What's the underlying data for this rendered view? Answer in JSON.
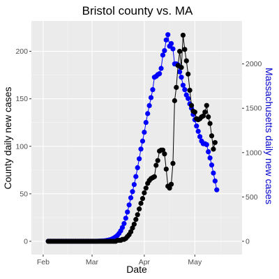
{
  "chart_data": {
    "type": "line",
    "title": "Bristol county vs. MA",
    "xlabel": "Date",
    "ylabel_left": "County daily new cases",
    "ylabel_right": "Massachusetts daily new cases",
    "x_ticks": [
      "Feb",
      "Mar",
      "Apr",
      "May"
    ],
    "y_left_ticks": [
      0,
      50,
      100,
      150,
      200
    ],
    "y_right_ticks": [
      0,
      500,
      1000,
      1500,
      2000
    ],
    "ylim_left": [
      -14,
      232
    ],
    "ylim_right": [
      -150,
      2485
    ],
    "xlim": [
      "2020-01-25",
      "2020-05-29"
    ],
    "grid": true,
    "legend": "none",
    "colors": {
      "panel_bg": "#ebebeb",
      "grid_major": "#ffffff",
      "grid_minor": "#f5f5f5",
      "county": "#000000",
      "state": "#0000ff",
      "right_axis_label": "#0000cc"
    },
    "series": [
      {
        "axis": "left",
        "color": "#000000",
        "start_date": "2020-02-04",
        "values": [
          0,
          0,
          0,
          0,
          0,
          0,
          0,
          0,
          0,
          0,
          0,
          0,
          0,
          0,
          0,
          0,
          0,
          0,
          0,
          0,
          0,
          0,
          0,
          0,
          0,
          0,
          0,
          0,
          0,
          0,
          0,
          0,
          0,
          0,
          0,
          0,
          0,
          0,
          0,
          0,
          0,
          1,
          1,
          1,
          2,
          2,
          3,
          5,
          7,
          10,
          14,
          18,
          23,
          28,
          34,
          40,
          45,
          51,
          56,
          61,
          64,
          66,
          67,
          68,
          80,
          85,
          95,
          96,
          96,
          92,
          76,
          58,
          56,
          60,
          82,
          148,
          162,
          185,
          200,
          183,
          217,
          202,
          190,
          176,
          159,
          143,
          137,
          136,
          129,
          128,
          129,
          131,
          132,
          136,
          143,
          131,
          124,
          111,
          97,
          104
        ]
      },
      {
        "axis": "right",
        "color": "#0000ff",
        "start_date": "2020-02-04",
        "values": [
          1,
          1,
          1,
          1,
          1,
          1,
          1,
          1,
          1,
          1,
          1,
          1,
          1,
          1,
          1,
          1,
          1,
          1,
          1,
          1,
          1,
          1,
          1,
          1,
          1,
          1,
          1,
          1,
          1,
          1,
          2,
          3,
          4,
          5,
          7,
          10,
          14,
          19,
          27,
          37,
          50,
          66,
          88,
          118,
          155,
          200,
          260,
          330,
          410,
          490,
          560,
          640,
          730,
          830,
          930,
          1040,
          1130,
          1230,
          1340,
          1440,
          1530,
          1620,
          1710,
          1850,
          1860,
          1880,
          1890,
          1950,
          2100,
          2150,
          2270,
          2330,
          2200,
          2230,
          2170,
          2000,
          2000,
          1990,
          1910,
          1850,
          1760,
          1710,
          1650,
          1610,
          1550,
          1500,
          1430,
          1370,
          1300,
          1240,
          1180,
          1130,
          1100,
          1100,
          1090,
          1010,
          940,
          860,
          770,
          680,
          580
        ]
      }
    ]
  }
}
